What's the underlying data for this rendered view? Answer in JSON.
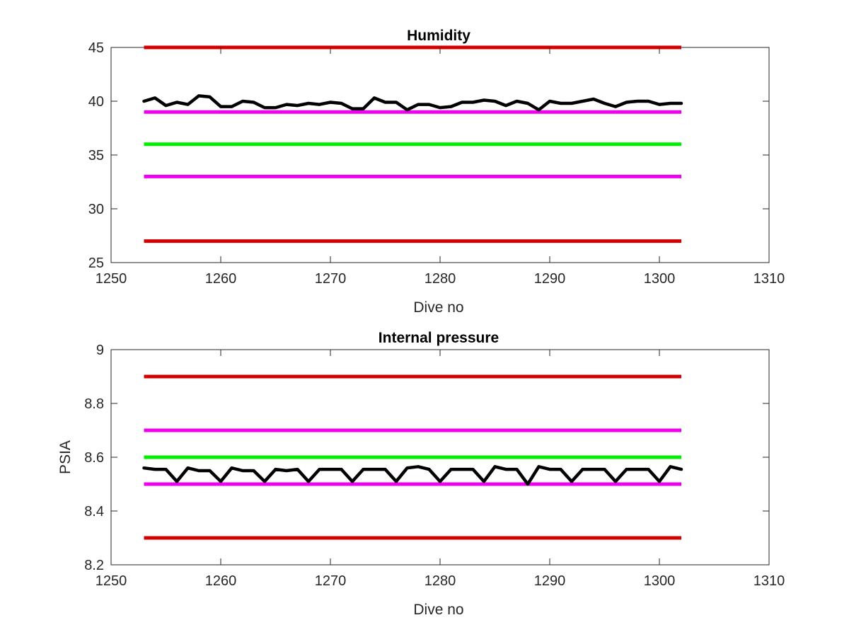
{
  "chart_data": [
    {
      "type": "line",
      "title": "Humidity",
      "xlabel": "Dive no",
      "ylabel": "",
      "xlim": [
        1250,
        1310
      ],
      "ylim": [
        25,
        45
      ],
      "xticks": [
        1250,
        1260,
        1270,
        1280,
        1290,
        1300,
        1310
      ],
      "yticks": [
        25,
        30,
        35,
        40,
        45
      ],
      "xtick_labels": [
        "1250",
        "1260",
        "1270",
        "1280",
        "1290",
        "1300",
        "1310"
      ],
      "ytick_labels": [
        "25",
        "30",
        "35",
        "40",
        "45"
      ],
      "grid": false,
      "thresholds": [
        {
          "y": 45,
          "x": [
            1253,
            1302
          ],
          "color": "#d40000"
        },
        {
          "y": 39,
          "x": [
            1253,
            1302
          ],
          "color": "#ee00ee"
        },
        {
          "y": 36,
          "x": [
            1253,
            1302
          ],
          "color": "#00ee00"
        },
        {
          "y": 33,
          "x": [
            1253,
            1302
          ],
          "color": "#ee00ee"
        },
        {
          "y": 27,
          "x": [
            1253,
            1302
          ],
          "color": "#d40000"
        }
      ],
      "series": [
        {
          "color": "#000000",
          "x": [
            1253,
            1254,
            1255,
            1256,
            1257,
            1258,
            1259,
            1260,
            1261,
            1262,
            1263,
            1264,
            1265,
            1266,
            1267,
            1268,
            1269,
            1270,
            1271,
            1272,
            1273,
            1274,
            1275,
            1276,
            1277,
            1278,
            1279,
            1280,
            1281,
            1282,
            1283,
            1284,
            1285,
            1286,
            1287,
            1288,
            1289,
            1290,
            1291,
            1292,
            1293,
            1294,
            1295,
            1296,
            1297,
            1298,
            1299,
            1300,
            1301,
            1302
          ],
          "values": [
            40.0,
            40.3,
            39.6,
            39.9,
            39.7,
            40.5,
            40.4,
            39.5,
            39.5,
            40.0,
            39.9,
            39.4,
            39.4,
            39.7,
            39.6,
            39.8,
            39.7,
            39.9,
            39.8,
            39.3,
            39.3,
            40.3,
            39.9,
            39.9,
            39.2,
            39.7,
            39.7,
            39.4,
            39.5,
            39.9,
            39.9,
            40.1,
            40.0,
            39.6,
            40.0,
            39.8,
            39.2,
            40.0,
            39.8,
            39.8,
            40.0,
            40.2,
            39.8,
            39.5,
            39.9,
            40.0,
            40.0,
            39.7,
            39.8,
            39.8
          ]
        }
      ]
    },
    {
      "type": "line",
      "title": "Internal pressure",
      "xlabel": "Dive no",
      "ylabel": "PSIA",
      "xlim": [
        1250,
        1310
      ],
      "ylim": [
        8.2,
        9
      ],
      "xticks": [
        1250,
        1260,
        1270,
        1280,
        1290,
        1300,
        1310
      ],
      "yticks": [
        8.2,
        8.4,
        8.6,
        8.8,
        9
      ],
      "xtick_labels": [
        "1250",
        "1260",
        "1270",
        "1280",
        "1290",
        "1300",
        "1310"
      ],
      "ytick_labels": [
        "8.2",
        "8.4",
        "8.6",
        "8.8",
        "9"
      ],
      "grid": false,
      "thresholds": [
        {
          "y": 8.9,
          "x": [
            1253,
            1302
          ],
          "color": "#d40000"
        },
        {
          "y": 8.7,
          "x": [
            1253,
            1302
          ],
          "color": "#ee00ee"
        },
        {
          "y": 8.6,
          "x": [
            1253,
            1302
          ],
          "color": "#00ee00"
        },
        {
          "y": 8.5,
          "x": [
            1253,
            1302
          ],
          "color": "#ee00ee"
        },
        {
          "y": 8.3,
          "x": [
            1253,
            1302
          ],
          "color": "#d40000"
        }
      ],
      "series": [
        {
          "color": "#000000",
          "x": [
            1253,
            1254,
            1255,
            1256,
            1257,
            1258,
            1259,
            1260,
            1261,
            1262,
            1263,
            1264,
            1265,
            1266,
            1267,
            1268,
            1269,
            1270,
            1271,
            1272,
            1273,
            1274,
            1275,
            1276,
            1277,
            1278,
            1279,
            1280,
            1281,
            1282,
            1283,
            1284,
            1285,
            1286,
            1287,
            1288,
            1289,
            1290,
            1291,
            1292,
            1293,
            1294,
            1295,
            1296,
            1297,
            1298,
            1299,
            1300,
            1301,
            1302
          ],
          "values": [
            8.56,
            8.555,
            8.555,
            8.51,
            8.56,
            8.55,
            8.55,
            8.51,
            8.56,
            8.55,
            8.55,
            8.51,
            8.555,
            8.55,
            8.555,
            8.51,
            8.555,
            8.555,
            8.555,
            8.51,
            8.555,
            8.555,
            8.555,
            8.51,
            8.56,
            8.565,
            8.555,
            8.51,
            8.555,
            8.555,
            8.555,
            8.51,
            8.565,
            8.555,
            8.555,
            8.5,
            8.565,
            8.555,
            8.555,
            8.51,
            8.555,
            8.555,
            8.555,
            8.51,
            8.555,
            8.555,
            8.555,
            8.51,
            8.565,
            8.555
          ]
        }
      ]
    }
  ]
}
